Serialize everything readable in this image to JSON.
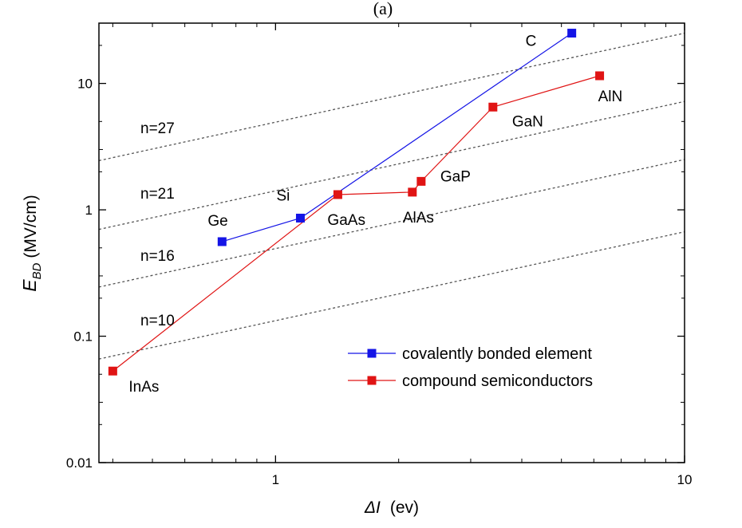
{
  "chart_data": {
    "type": "line",
    "caption": "(a)",
    "xlabel": {
      "symbol": "ΔI",
      "units": "(ev)"
    },
    "ylabel": {
      "symbol": "E",
      "subscript": "BD",
      "units": "(MV/cm)"
    },
    "x_scale": "log",
    "y_scale": "log",
    "xlim": [
      0.37,
      10
    ],
    "ylim": [
      0.01,
      30
    ],
    "x_ticks": [
      {
        "value": 1,
        "label": "1"
      },
      {
        "value": 10,
        "label": "10"
      }
    ],
    "y_ticks": [
      {
        "value": 0.01,
        "label": "0.01"
      },
      {
        "value": 0.1,
        "label": "0.1"
      },
      {
        "value": 1,
        "label": "1"
      },
      {
        "value": 10,
        "label": "10"
      }
    ],
    "grid": false,
    "legend_position": "bottom-right",
    "series": [
      {
        "name": "covalently bonded element",
        "color": "#1414e6",
        "marker": "square",
        "points": [
          {
            "label": "Ge",
            "x": 0.74,
            "y": 0.56
          },
          {
            "label": "Si",
            "x": 1.15,
            "y": 0.86
          },
          {
            "label": "C",
            "x": 5.3,
            "y": 25
          }
        ]
      },
      {
        "name": "compound semiconductors",
        "color": "#e01414",
        "marker": "square",
        "points": [
          {
            "label": "InAs",
            "x": 0.4,
            "y": 0.053
          },
          {
            "label": "GaAs",
            "x": 1.42,
            "y": 1.32
          },
          {
            "label": "AlAs",
            "x": 2.16,
            "y": 1.38
          },
          {
            "label": "GaP",
            "x": 2.27,
            "y": 1.68
          },
          {
            "label": "GaN",
            "x": 3.4,
            "y": 6.5
          },
          {
            "label": "AlN",
            "x": 6.2,
            "y": 11.5
          }
        ]
      }
    ],
    "reference_lines": [
      {
        "label": "n=10",
        "style": "dotted",
        "color": "#555555",
        "x0": 0.37,
        "y0": 0.066,
        "x1": 10,
        "y1": 0.67
      },
      {
        "label": "n=16",
        "style": "dotted",
        "color": "#555555",
        "x0": 0.37,
        "y0": 0.245,
        "x1": 10,
        "y1": 2.5
      },
      {
        "label": "n=21",
        "style": "dotted",
        "color": "#555555",
        "x0": 0.37,
        "y0": 0.7,
        "x1": 10,
        "y1": 7.2
      },
      {
        "label": "n=27",
        "style": "dotted",
        "color": "#555555",
        "x0": 0.37,
        "y0": 2.45,
        "x1": 10,
        "y1": 25
      }
    ]
  }
}
